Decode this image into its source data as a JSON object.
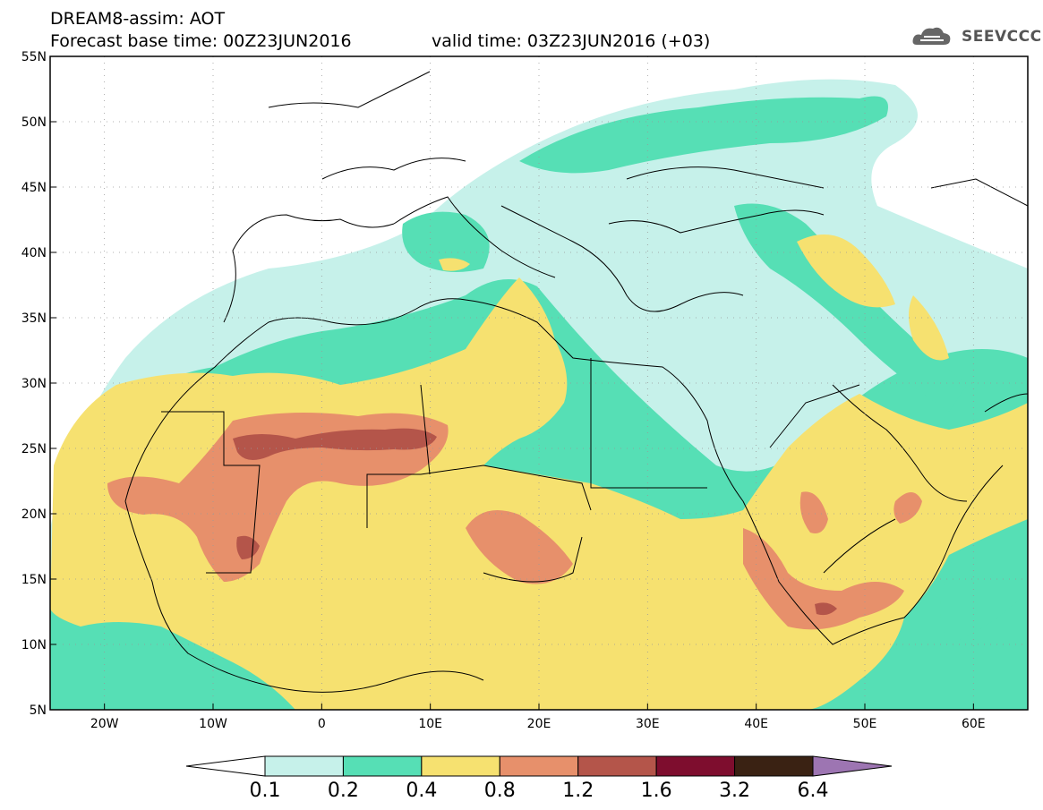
{
  "title": {
    "line1": "DREAM8-assim: AOT",
    "line2": "Forecast base time: 00Z23JUN2016",
    "line3": "valid time: 03Z23JUN2016 (+03)"
  },
  "logo": {
    "text": "SEEVCCC",
    "icon": "cloud-logo-icon",
    "color": "#555555"
  },
  "map": {
    "lat_labels": [
      "55N",
      "50N",
      "45N",
      "40N",
      "35N",
      "30N",
      "25N",
      "20N",
      "15N",
      "10N",
      "5N"
    ],
    "lon_labels": [
      "20W",
      "10W",
      "0",
      "10E",
      "20E",
      "30E",
      "40E",
      "50E",
      "60E"
    ],
    "lon_range": [
      -25,
      65
    ],
    "lat_range": [
      5,
      55
    ]
  },
  "colorbar": {
    "labels": [
      "0.1",
      "0.2",
      "0.4",
      "0.8",
      "1.2",
      "1.6",
      "3.2",
      "6.4"
    ],
    "colors": [
      "#ffffff",
      "#c6f1ea",
      "#56dfb5",
      "#f6e170",
      "#e7906b",
      "#b4554a",
      "#7e0d2e",
      "#3a2213",
      "#9d75b2"
    ]
  }
}
